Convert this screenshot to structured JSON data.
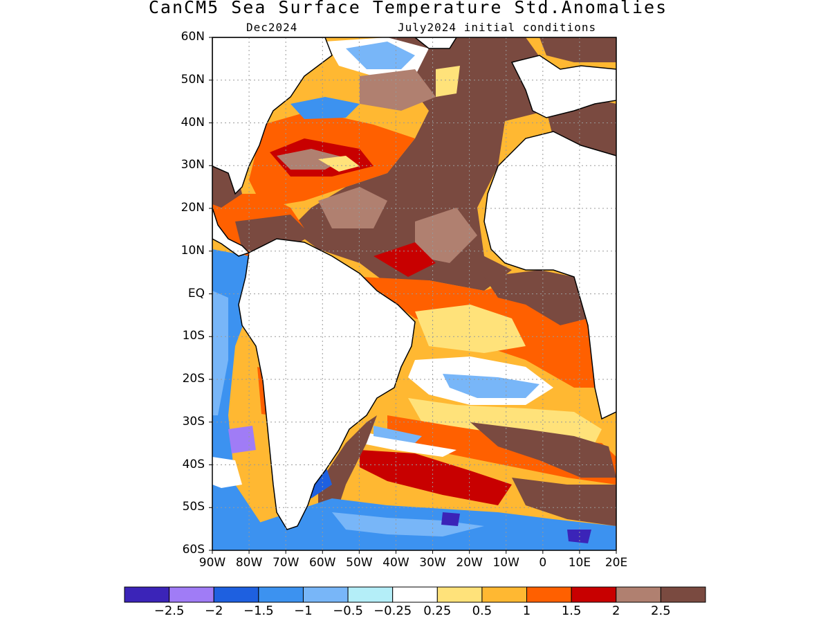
{
  "title": "CanCM5 Sea Surface Temperature Std.Anomalies",
  "subtitle_left": "Dec2024",
  "subtitle_right": "July2024 initial conditions",
  "lat_labels": [
    "60N",
    "50N",
    "40N",
    "30N",
    "20N",
    "10N",
    "EQ",
    "10S",
    "20S",
    "30S",
    "40S",
    "50S",
    "60S"
  ],
  "lon_labels": [
    "90W",
    "80W",
    "70W",
    "60W",
    "50W",
    "40W",
    "30W",
    "20W",
    "10W",
    "0",
    "10E",
    "20E"
  ],
  "colorbar": {
    "colors": [
      "#3b24b8",
      "#a07cf6",
      "#1e60e0",
      "#3c92f0",
      "#78b6f8",
      "#b4eef8",
      "#ffffff",
      "#ffe27a",
      "#ffb832",
      "#ff6000",
      "#c80000",
      "#b08070",
      "#7a4a40"
    ],
    "labels": [
      "-2.5",
      "-2",
      "-1.5",
      "-1",
      "-0.5",
      "-0.25",
      "0.25",
      "0.5",
      "1",
      "1.5",
      "2",
      "2.5"
    ]
  },
  "chart_data": {
    "type": "heatmap",
    "title": "CanCM5 Sea Surface Temperature Std.Anomalies",
    "subtitle": "Dec2024  July2024 initial conditions",
    "lon_range": [
      -90,
      20
    ],
    "lat_range": [
      -60,
      60
    ],
    "levels": [
      -2.5,
      -2,
      -1.5,
      -1,
      -0.5,
      -0.25,
      0.25,
      0.5,
      1,
      1.5,
      2,
      2.5
    ],
    "grid": "dotted"
  }
}
